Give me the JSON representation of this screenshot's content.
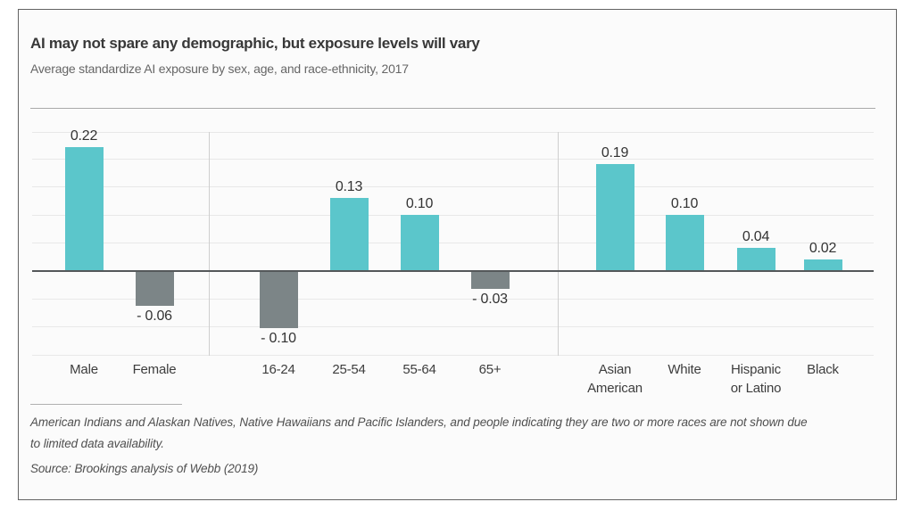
{
  "header": {
    "title": "AI may not spare any demographic, but exposure levels will vary",
    "subtitle": "Average standardize AI exposure by sex, age, and race-ethnicity, 2017"
  },
  "chart_data": {
    "type": "bar",
    "title": "AI may not spare any demographic, but exposure levels will vary",
    "subtitle": "Average standardize AI exposure by sex, age, and race-ethnicity, 2017",
    "ylabel": "",
    "xlabel": "",
    "ylim": [
      -0.15,
      0.25
    ],
    "gridline_step": 0.05,
    "grid": true,
    "legend": false,
    "groups": [
      {
        "name": "sex",
        "categories": [
          "Male",
          "Female"
        ],
        "display_labels": [
          "Male",
          "Female"
        ],
        "values": [
          0.22,
          -0.06
        ],
        "value_labels": [
          "0.22",
          "- 0.06"
        ]
      },
      {
        "name": "age",
        "categories": [
          "16-24",
          "25-54",
          "55-64",
          "65+"
        ],
        "display_labels": [
          "16-24",
          "25-54",
          "55-64",
          "65+"
        ],
        "values": [
          -0.1,
          0.13,
          0.1,
          -0.03
        ],
        "value_labels": [
          "- 0.10",
          "0.13",
          "0.10",
          "- 0.03"
        ]
      },
      {
        "name": "race-ethnicity",
        "categories": [
          "Asian American",
          "White",
          "Hispanic or Latino",
          "Black"
        ],
        "display_labels": [
          "Asian\nAmerican",
          "White",
          "Hispanic\nor Latino",
          "Black"
        ],
        "values": [
          0.19,
          0.1,
          0.04,
          0.02
        ],
        "value_labels": [
          "0.19",
          "0.10",
          "0.04",
          "0.02"
        ]
      }
    ],
    "colors": {
      "positive": "#5bc6cb",
      "negative": "#7c8587",
      "zero_line": "#54585a",
      "gridline": "#e8e8e8",
      "separator": "#cfcfcf"
    }
  },
  "footer": {
    "note": "American Indians and Alaskan Natives, Native Hawaiians and Pacific Islanders, and people indicating they are two or more races are not shown due\nto limited data availability.",
    "source": "Source: Brookings analysis of Webb (2019)"
  }
}
